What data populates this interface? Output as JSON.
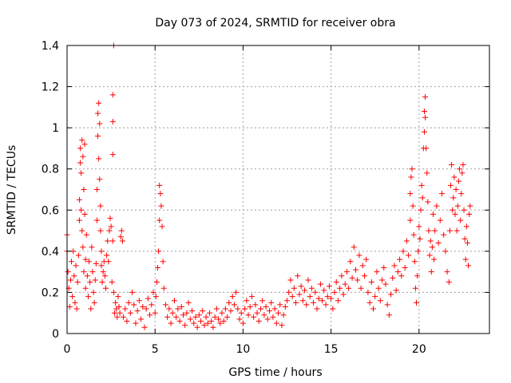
{
  "chart_data": {
    "type": "scatter",
    "title": "Day 073 of 2024, SRMTID for receiver obra",
    "xlabel": "GPS time / hours",
    "ylabel": "SRMTID / TECUs",
    "xlim": [
      0,
      24
    ],
    "ylim": [
      0,
      1.4
    ],
    "xticks": [
      0,
      5,
      10,
      15,
      20
    ],
    "yticks": [
      0,
      0.2,
      0.4,
      0.6,
      0.8,
      1,
      1.2,
      1.4
    ],
    "ytick_labels": [
      "0",
      "0.2",
      "0.4",
      "0.6",
      "0.8",
      "1",
      "1.2",
      "1.4"
    ],
    "grid": true,
    "marker": "+",
    "series_color": "#ff0000",
    "series": [
      {
        "name": "SRMTID",
        "points": [
          [
            0.0,
            0.48
          ],
          [
            0.0,
            0.4
          ],
          [
            0.05,
            0.3
          ],
          [
            0.1,
            0.22
          ],
          [
            0.15,
            0.13
          ],
          [
            0.2,
            0.26
          ],
          [
            0.25,
            0.35
          ],
          [
            0.3,
            0.18
          ],
          [
            0.35,
            0.4
          ],
          [
            0.4,
            0.28
          ],
          [
            0.45,
            0.15
          ],
          [
            0.5,
            0.33
          ],
          [
            0.55,
            0.12
          ],
          [
            0.6,
            0.25
          ],
          [
            0.65,
            0.38
          ],
          [
            0.7,
            0.55
          ],
          [
            0.7,
            0.65
          ],
          [
            0.75,
            0.9
          ],
          [
            0.75,
            0.83
          ],
          [
            0.8,
            0.78
          ],
          [
            0.8,
            0.6
          ],
          [
            0.85,
            0.94
          ],
          [
            0.85,
            0.5
          ],
          [
            0.9,
            0.86
          ],
          [
            0.9,
            0.42
          ],
          [
            0.95,
            0.7
          ],
          [
            0.95,
            0.3
          ],
          [
            1.0,
            0.92
          ],
          [
            1.0,
            0.58
          ],
          [
            1.05,
            0.36
          ],
          [
            1.05,
            0.22
          ],
          [
            1.1,
            0.48
          ],
          [
            1.15,
            0.28
          ],
          [
            1.2,
            0.18
          ],
          [
            1.25,
            0.35
          ],
          [
            1.3,
            0.25
          ],
          [
            1.35,
            0.12
          ],
          [
            1.4,
            0.42
          ],
          [
            1.45,
            0.3
          ],
          [
            1.5,
            0.2
          ],
          [
            1.55,
            0.15
          ],
          [
            1.6,
            0.26
          ],
          [
            1.65,
            0.34
          ],
          [
            1.7,
            0.55
          ],
          [
            1.7,
            0.7
          ],
          [
            1.75,
            0.96
          ],
          [
            1.75,
            1.07
          ],
          [
            1.8,
            1.12
          ],
          [
            1.8,
            0.85
          ],
          [
            1.85,
            1.02
          ],
          [
            1.85,
            0.75
          ],
          [
            1.9,
            0.62
          ],
          [
            1.9,
            0.5
          ],
          [
            1.95,
            0.4
          ],
          [
            1.95,
            0.33
          ],
          [
            2.0,
            0.25
          ],
          [
            2.05,
            0.3
          ],
          [
            2.1,
            0.35
          ],
          [
            2.15,
            0.28
          ],
          [
            2.2,
            0.22
          ],
          [
            2.25,
            0.38
          ],
          [
            2.3,
            0.45
          ],
          [
            2.35,
            0.35
          ],
          [
            2.4,
            0.5
          ],
          [
            2.45,
            0.56
          ],
          [
            2.5,
            0.52
          ],
          [
            2.55,
            0.25
          ],
          [
            2.6,
            0.45
          ],
          [
            2.6,
            0.87
          ],
          [
            2.6,
            1.03
          ],
          [
            2.6,
            1.16
          ],
          [
            2.65,
            1.4
          ],
          [
            2.65,
            0.2
          ],
          [
            2.7,
            0.1
          ],
          [
            2.75,
            0.15
          ],
          [
            2.8,
            0.12
          ],
          [
            2.85,
            0.08
          ],
          [
            2.9,
            0.18
          ],
          [
            2.95,
            0.13
          ],
          [
            3.0,
            0.1
          ],
          [
            3.05,
            0.47
          ],
          [
            3.1,
            0.5
          ],
          [
            3.15,
            0.45
          ],
          [
            3.2,
            0.08
          ],
          [
            3.3,
            0.12
          ],
          [
            3.4,
            0.06
          ],
          [
            3.5,
            0.15
          ],
          [
            3.6,
            0.1
          ],
          [
            3.7,
            0.2
          ],
          [
            3.8,
            0.14
          ],
          [
            3.9,
            0.05
          ],
          [
            4.0,
            0.11
          ],
          [
            4.1,
            0.16
          ],
          [
            4.2,
            0.07
          ],
          [
            4.3,
            0.13
          ],
          [
            4.4,
            0.03
          ],
          [
            4.5,
            0.12
          ],
          [
            4.6,
            0.17
          ],
          [
            4.7,
            0.09
          ],
          [
            4.8,
            0.14
          ],
          [
            4.9,
            0.2
          ],
          [
            5.0,
            0.1
          ],
          [
            5.05,
            0.18
          ],
          [
            5.1,
            0.25
          ],
          [
            5.15,
            0.32
          ],
          [
            5.2,
            0.4
          ],
          [
            5.25,
            0.55
          ],
          [
            5.25,
            0.72
          ],
          [
            5.3,
            0.68
          ],
          [
            5.35,
            0.62
          ],
          [
            5.4,
            0.52
          ],
          [
            5.45,
            0.35
          ],
          [
            5.5,
            0.22
          ],
          [
            5.6,
            0.14
          ],
          [
            5.7,
            0.08
          ],
          [
            5.8,
            0.12
          ],
          [
            5.9,
            0.05
          ],
          [
            6.0,
            0.1
          ],
          [
            6.1,
            0.16
          ],
          [
            6.2,
            0.08
          ],
          [
            6.3,
            0.12
          ],
          [
            6.4,
            0.06
          ],
          [
            6.5,
            0.13
          ],
          [
            6.6,
            0.09
          ],
          [
            6.7,
            0.04
          ],
          [
            6.8,
            0.1
          ],
          [
            6.9,
            0.15
          ],
          [
            7.0,
            0.07
          ],
          [
            7.1,
            0.11
          ],
          [
            7.2,
            0.05
          ],
          [
            7.3,
            0.08
          ],
          [
            7.4,
            0.03
          ],
          [
            7.5,
            0.09
          ],
          [
            7.6,
            0.06
          ],
          [
            7.7,
            0.11
          ],
          [
            7.8,
            0.04
          ],
          [
            7.9,
            0.08
          ],
          [
            8.0,
            0.05
          ],
          [
            8.1,
            0.1
          ],
          [
            8.2,
            0.06
          ],
          [
            8.3,
            0.03
          ],
          [
            8.4,
            0.08
          ],
          [
            8.5,
            0.12
          ],
          [
            8.6,
            0.07
          ],
          [
            8.7,
            0.05
          ],
          [
            8.8,
            0.1
          ],
          [
            8.9,
            0.06
          ],
          [
            9.0,
            0.12
          ],
          [
            9.1,
            0.08
          ],
          [
            9.2,
            0.15
          ],
          [
            9.3,
            0.11
          ],
          [
            9.4,
            0.18
          ],
          [
            9.5,
            0.14
          ],
          [
            9.6,
            0.2
          ],
          [
            9.7,
            0.12
          ],
          [
            9.8,
            0.07
          ],
          [
            9.9,
            0.1
          ],
          [
            10.0,
            0.05
          ],
          [
            10.1,
            0.12
          ],
          [
            10.2,
            0.16
          ],
          [
            10.3,
            0.09
          ],
          [
            10.4,
            0.13
          ],
          [
            10.5,
            0.18
          ],
          [
            10.6,
            0.08
          ],
          [
            10.7,
            0.14
          ],
          [
            10.8,
            0.1
          ],
          [
            10.9,
            0.06
          ],
          [
            11.0,
            0.12
          ],
          [
            11.1,
            0.16
          ],
          [
            11.2,
            0.09
          ],
          [
            11.3,
            0.13
          ],
          [
            11.4,
            0.07
          ],
          [
            11.5,
            0.11
          ],
          [
            11.6,
            0.15
          ],
          [
            11.7,
            0.08
          ],
          [
            11.8,
            0.12
          ],
          [
            11.9,
            0.05
          ],
          [
            12.0,
            0.1
          ],
          [
            12.1,
            0.14
          ],
          [
            12.2,
            0.04
          ],
          [
            12.3,
            0.09
          ],
          [
            12.4,
            0.13
          ],
          [
            12.5,
            0.16
          ],
          [
            12.6,
            0.2
          ],
          [
            12.7,
            0.26
          ],
          [
            12.8,
            0.18
          ],
          [
            12.9,
            0.22
          ],
          [
            13.0,
            0.15
          ],
          [
            13.1,
            0.28
          ],
          [
            13.2,
            0.19
          ],
          [
            13.3,
            0.23
          ],
          [
            13.4,
            0.16
          ],
          [
            13.5,
            0.21
          ],
          [
            13.6,
            0.14
          ],
          [
            13.7,
            0.26
          ],
          [
            13.8,
            0.18
          ],
          [
            13.9,
            0.22
          ],
          [
            14.0,
            0.15
          ],
          [
            14.1,
            0.2
          ],
          [
            14.2,
            0.12
          ],
          [
            14.3,
            0.17
          ],
          [
            14.4,
            0.24
          ],
          [
            14.5,
            0.16
          ],
          [
            14.6,
            0.21
          ],
          [
            14.7,
            0.14
          ],
          [
            14.8,
            0.18
          ],
          [
            14.9,
            0.23
          ],
          [
            15.0,
            0.17
          ],
          [
            15.1,
            0.12
          ],
          [
            15.2,
            0.2
          ],
          [
            15.3,
            0.25
          ],
          [
            15.4,
            0.16
          ],
          [
            15.5,
            0.22
          ],
          [
            15.6,
            0.28
          ],
          [
            15.7,
            0.19
          ],
          [
            15.8,
            0.24
          ],
          [
            15.9,
            0.3
          ],
          [
            16.0,
            0.22
          ],
          [
            16.1,
            0.35
          ],
          [
            16.2,
            0.27
          ],
          [
            16.3,
            0.42
          ],
          [
            16.4,
            0.31
          ],
          [
            16.5,
            0.26
          ],
          [
            16.6,
            0.38
          ],
          [
            16.7,
            0.22
          ],
          [
            16.8,
            0.33
          ],
          [
            16.9,
            0.28
          ],
          [
            17.0,
            0.36
          ],
          [
            17.1,
            0.2
          ],
          [
            17.2,
            0.15
          ],
          [
            17.3,
            0.25
          ],
          [
            17.4,
            0.12
          ],
          [
            17.5,
            0.18
          ],
          [
            17.6,
            0.3
          ],
          [
            17.7,
            0.22
          ],
          [
            17.8,
            0.16
          ],
          [
            17.9,
            0.26
          ],
          [
            18.0,
            0.32
          ],
          [
            18.1,
            0.24
          ],
          [
            18.2,
            0.14
          ],
          [
            18.3,
            0.09
          ],
          [
            18.4,
            0.19
          ],
          [
            18.5,
            0.27
          ],
          [
            18.6,
            0.33
          ],
          [
            18.7,
            0.21
          ],
          [
            18.8,
            0.3
          ],
          [
            18.9,
            0.36
          ],
          [
            19.0,
            0.28
          ],
          [
            19.1,
            0.4
          ],
          [
            19.2,
            0.32
          ],
          [
            19.3,
            0.45
          ],
          [
            19.4,
            0.38
          ],
          [
            19.5,
            0.55
          ],
          [
            19.5,
            0.68
          ],
          [
            19.55,
            0.76
          ],
          [
            19.6,
            0.8
          ],
          [
            19.65,
            0.62
          ],
          [
            19.7,
            0.48
          ],
          [
            19.75,
            0.35
          ],
          [
            19.8,
            0.22
          ],
          [
            19.85,
            0.15
          ],
          [
            19.9,
            0.28
          ],
          [
            19.95,
            0.4
          ],
          [
            20.0,
            0.52
          ],
          [
            20.05,
            0.46
          ],
          [
            20.1,
            0.6
          ],
          [
            20.15,
            0.72
          ],
          [
            20.2,
            0.66
          ],
          [
            20.25,
            0.9
          ],
          [
            20.3,
            0.98
          ],
          [
            20.3,
            1.08
          ],
          [
            20.35,
            1.15
          ],
          [
            20.35,
            1.05
          ],
          [
            20.4,
            0.9
          ],
          [
            20.45,
            0.78
          ],
          [
            20.5,
            0.64
          ],
          [
            20.55,
            0.5
          ],
          [
            20.6,
            0.38
          ],
          [
            20.65,
            0.45
          ],
          [
            20.7,
            0.3
          ],
          [
            20.75,
            0.42
          ],
          [
            20.8,
            0.58
          ],
          [
            20.85,
            0.36
          ],
          [
            20.9,
            0.5
          ],
          [
            21.0,
            0.62
          ],
          [
            21.1,
            0.44
          ],
          [
            21.2,
            0.55
          ],
          [
            21.3,
            0.68
          ],
          [
            21.4,
            0.48
          ],
          [
            21.5,
            0.4
          ],
          [
            21.6,
            0.3
          ],
          [
            21.7,
            0.25
          ],
          [
            21.75,
            0.5
          ],
          [
            21.8,
            0.72
          ],
          [
            21.85,
            0.82
          ],
          [
            21.9,
            0.6
          ],
          [
            21.95,
            0.66
          ],
          [
            22.0,
            0.76
          ],
          [
            22.05,
            0.58
          ],
          [
            22.1,
            0.7
          ],
          [
            22.15,
            0.5
          ],
          [
            22.2,
            0.62
          ],
          [
            22.25,
            0.74
          ],
          [
            22.3,
            0.8
          ],
          [
            22.35,
            0.55
          ],
          [
            22.4,
            0.68
          ],
          [
            22.45,
            0.78
          ],
          [
            22.5,
            0.82
          ],
          [
            22.55,
            0.6
          ],
          [
            22.6,
            0.46
          ],
          [
            22.65,
            0.36
          ],
          [
            22.7,
            0.52
          ],
          [
            22.75,
            0.44
          ],
          [
            22.8,
            0.33
          ],
          [
            22.85,
            0.58
          ],
          [
            22.9,
            0.62
          ]
        ]
      }
    ]
  }
}
